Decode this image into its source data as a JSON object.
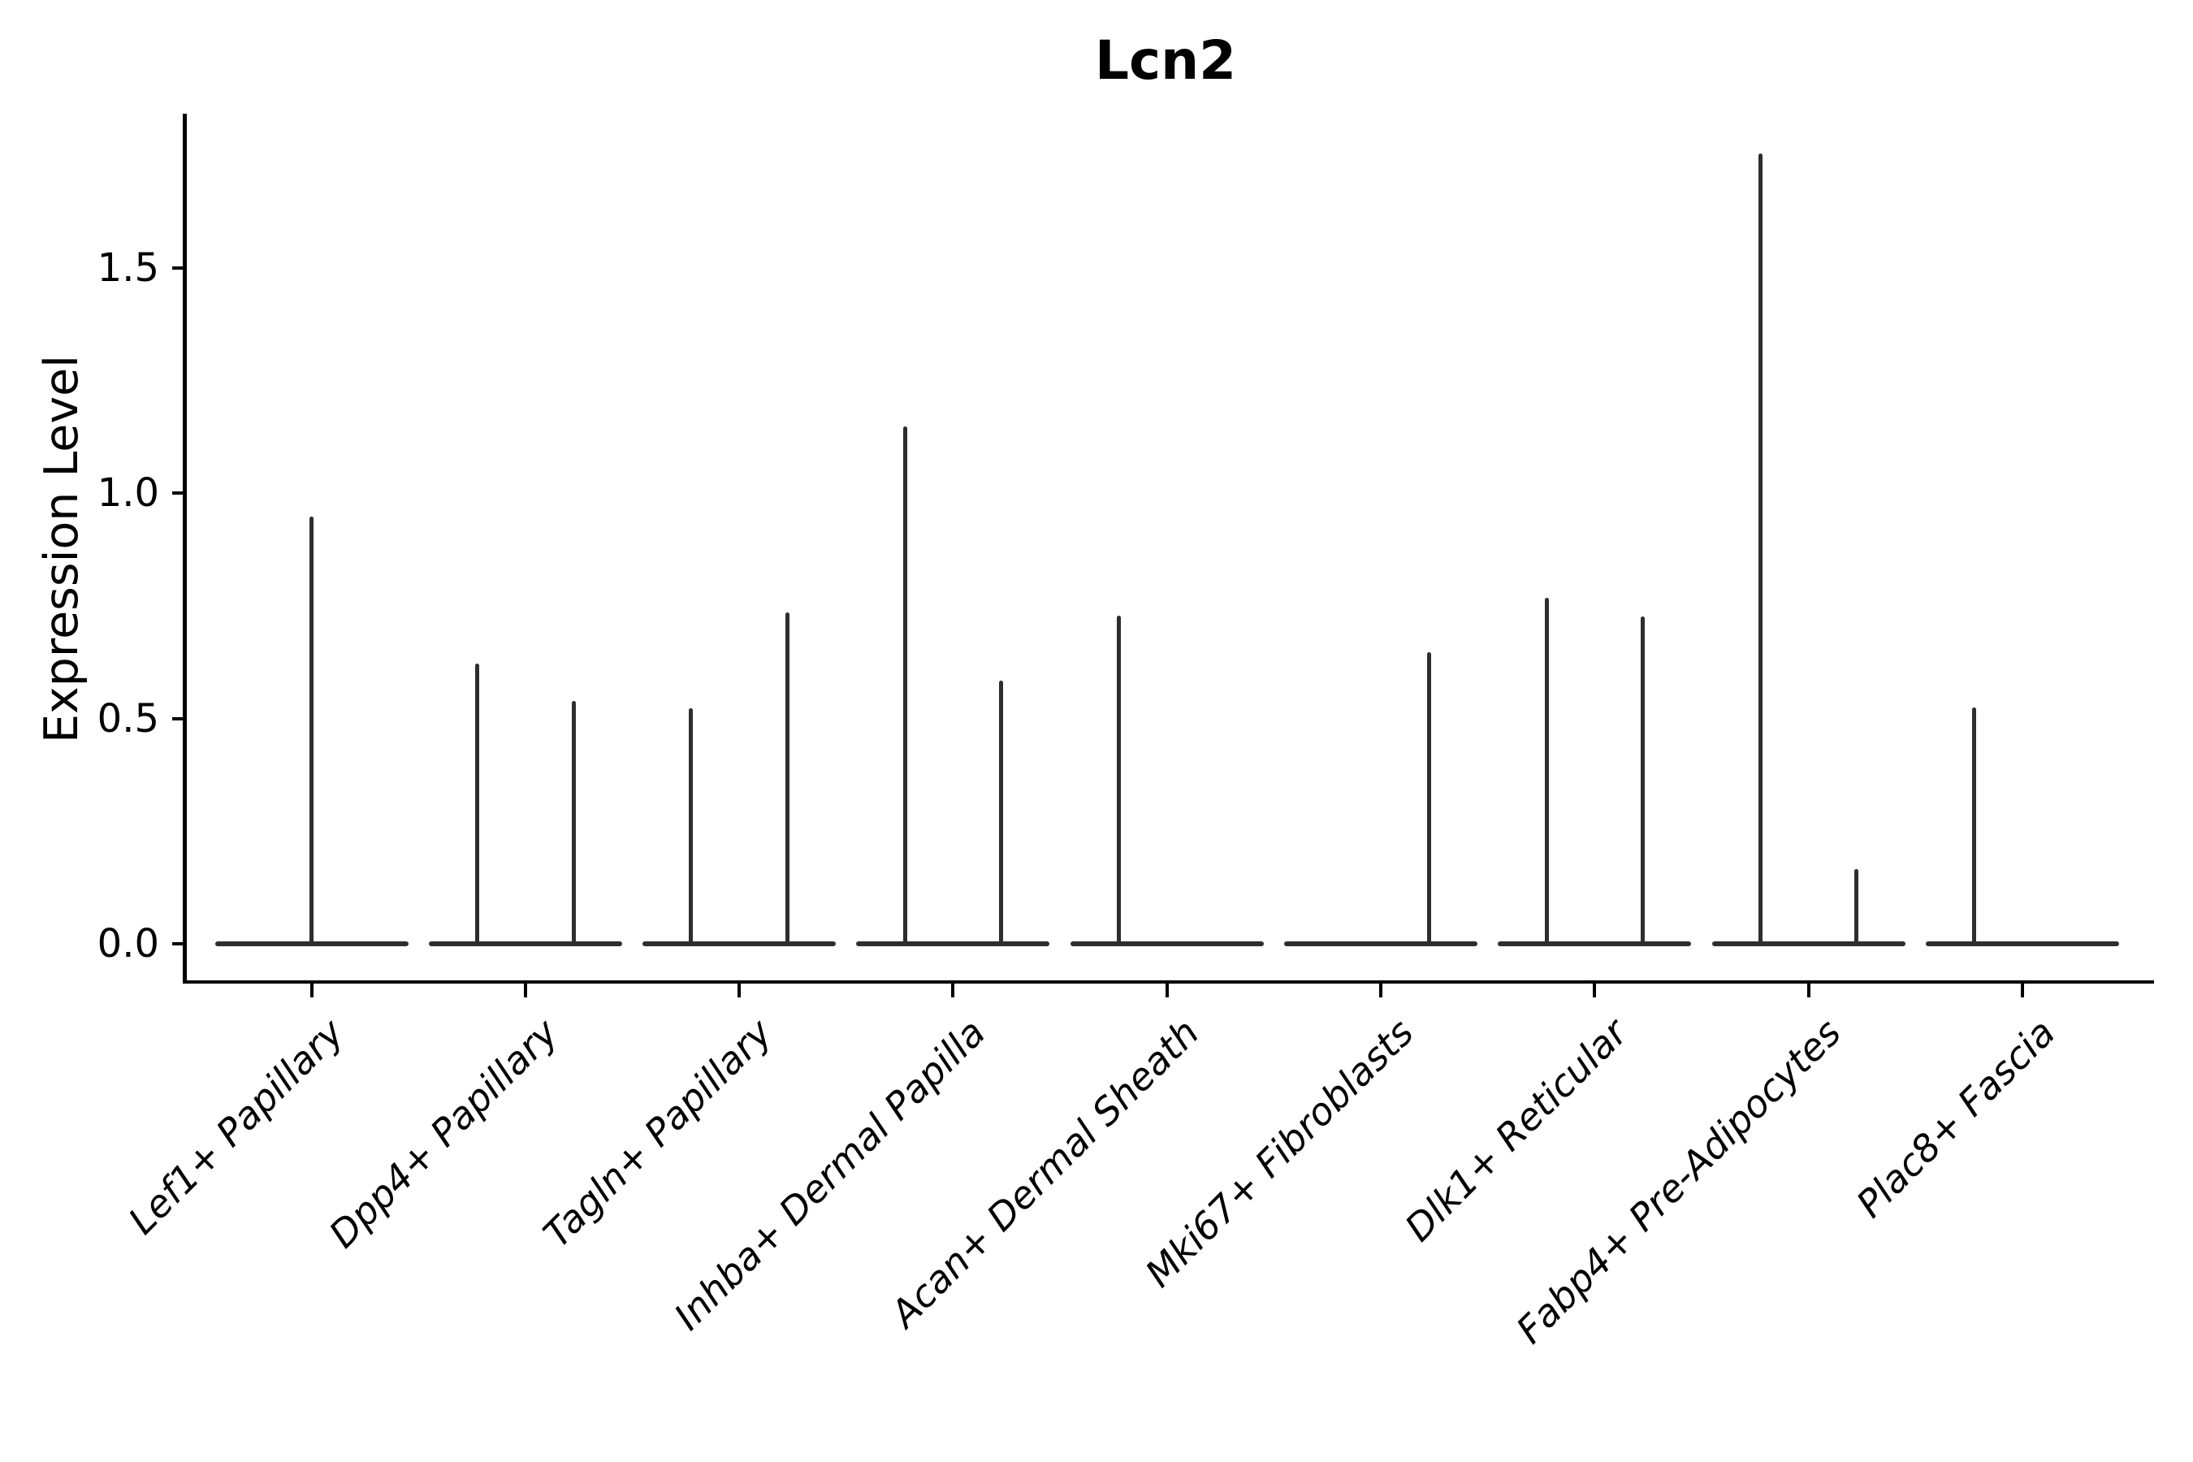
{
  "title": "Lcn2",
  "axes": {
    "ylabel": "Expression Level",
    "ytick_labels": [
      "0.0",
      "0.5",
      "1.0",
      "1.5"
    ]
  },
  "colors": {
    "background": "#ffffff",
    "axis": "#000000",
    "text": "#000000",
    "violin_outline": "#2e2e2e"
  },
  "chart_data": {
    "type": "violin",
    "title": "Lcn2",
    "xlabel": "",
    "ylabel": "Expression Level",
    "ylim": [
      -0.085,
      1.84
    ],
    "yticks": [
      0.0,
      0.5,
      1.0,
      1.5
    ],
    "grid": false,
    "legend": null,
    "categories": [
      "Lef1+ Papillary",
      "Dpp4+ Papillary",
      "Tagln+ Papillary",
      "Inhba+ Dermal Papilla",
      "Acan+ Dermal Sheath",
      "Mki67+ Fibroblasts",
      "Dlk1+ Reticular",
      "Fabp4+ Pre-Adipocytes",
      "Plac8+ Fascia"
    ],
    "description": "Violin plot of Lcn2 expression; each category shows a flat zero-density baseline with thin vertical density spikes at the expression values of the few expressing cells. Spikes sit at the left/right dodge slot (or centered) within each category.",
    "baseline_value": 0.0,
    "violins": [
      {
        "category": "Lef1+ Papillary",
        "spikes": [
          {
            "slot": "center",
            "value": 0.948
          }
        ]
      },
      {
        "category": "Dpp4+ Papillary",
        "spikes": [
          {
            "slot": "left",
            "value": 0.622
          },
          {
            "slot": "right",
            "value": 0.539
          }
        ]
      },
      {
        "category": "Tagln+ Papillary",
        "spikes": [
          {
            "slot": "left",
            "value": 0.522
          },
          {
            "slot": "right",
            "value": 0.736
          }
        ]
      },
      {
        "category": "Inhba+ Dermal Papilla",
        "spikes": [
          {
            "slot": "left",
            "value": 1.148
          },
          {
            "slot": "right",
            "value": 0.585
          }
        ]
      },
      {
        "category": "Acan+ Dermal Sheath",
        "spikes": [
          {
            "slot": "left",
            "value": 0.728
          }
        ]
      },
      {
        "category": "Mki67+ Fibroblasts",
        "spikes": [
          {
            "slot": "right",
            "value": 0.648
          }
        ]
      },
      {
        "category": "Dlk1+ Reticular",
        "spikes": [
          {
            "slot": "left",
            "value": 0.768
          },
          {
            "slot": "right",
            "value": 0.727
          }
        ]
      },
      {
        "category": "Fabp4+ Pre-Adipocytes",
        "spikes": [
          {
            "slot": "left",
            "value": 1.754
          },
          {
            "slot": "right",
            "value": 0.166
          }
        ]
      },
      {
        "category": "Plac8+ Fascia",
        "spikes": [
          {
            "slot": "left",
            "value": 0.525
          }
        ]
      }
    ]
  }
}
